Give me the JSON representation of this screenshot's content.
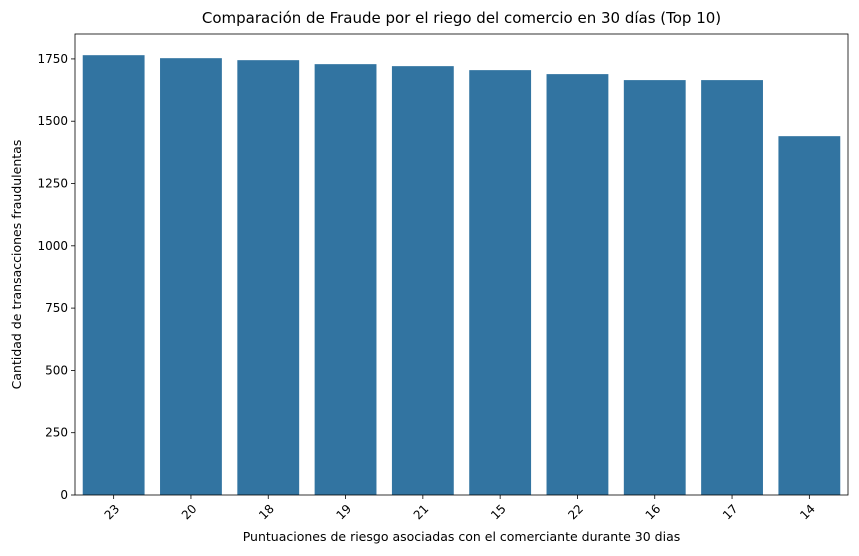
{
  "chart_data": {
    "type": "bar",
    "title": "Comparación de Fraude por el riego del comercio en 30 días (Top 10)",
    "xlabel": "Puntuaciones de riesgo asociadas con el comerciante durante 30 dias",
    "ylabel": "Cantidad de transacciones fraudulentas",
    "categories": [
      "23",
      "20",
      "18",
      "19",
      "21",
      "15",
      "22",
      "16",
      "17",
      "14"
    ],
    "values": [
      1765,
      1753,
      1745,
      1729,
      1721,
      1705,
      1689,
      1665,
      1665,
      1440
    ],
    "ylim": [
      0,
      1850
    ],
    "yticks": [
      0,
      250,
      500,
      750,
      1000,
      1250,
      1500,
      1750
    ],
    "x_tick_rotation": 45,
    "grid": false,
    "bar_color": "#3274a1"
  }
}
